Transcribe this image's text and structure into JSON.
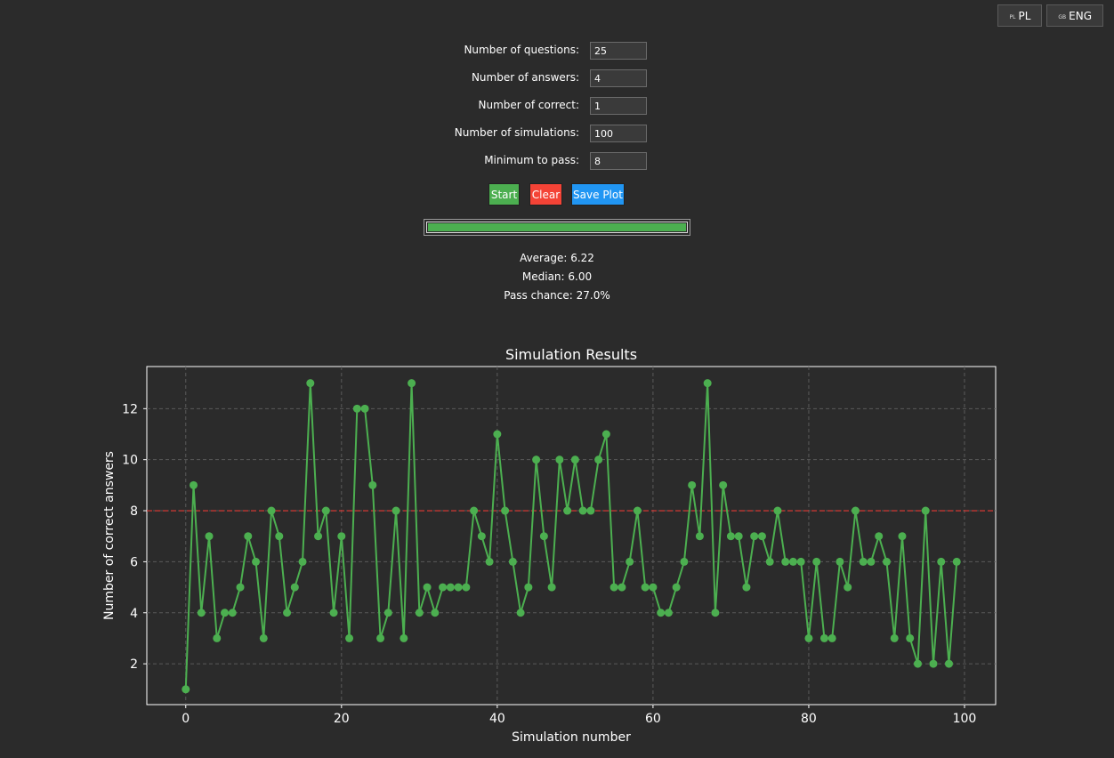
{
  "language": {
    "pl": {
      "flag": "PL",
      "label": "PL"
    },
    "eng": {
      "flag": "GB",
      "label": "ENG"
    }
  },
  "form": {
    "questions": {
      "label": "Number of questions:",
      "value": "25"
    },
    "answers": {
      "label": "Number of answers:",
      "value": "4"
    },
    "correct": {
      "label": "Number of correct:",
      "value": "1"
    },
    "simulations": {
      "label": "Number of simulations:",
      "value": "100"
    },
    "minimum": {
      "label": "Minimum to pass:",
      "value": "8"
    }
  },
  "buttons": {
    "start": "Start",
    "clear": "Clear",
    "save": "Save Plot"
  },
  "colors": {
    "start": "#4caf50",
    "clear": "#f44336",
    "save": "#2196f3",
    "series": "#4caf50",
    "threshold": "#e53935"
  },
  "progress": {
    "fraction": 1.0
  },
  "stats": {
    "average": "Average: 6.22",
    "median": "Median: 6.00",
    "pass_chance": "Pass chance: 27.0%"
  },
  "chart_data": {
    "type": "line",
    "title": "Simulation Results",
    "xlabel": "Simulation number",
    "ylabel": "Number of correct answers",
    "xlim": [
      -5,
      104
    ],
    "ylim": [
      0.4,
      13.65
    ],
    "xticks": [
      0,
      20,
      40,
      60,
      80,
      100
    ],
    "yticks": [
      2,
      4,
      6,
      8,
      10,
      12
    ],
    "grid": true,
    "threshold": 8,
    "x": [
      0,
      1,
      2,
      3,
      4,
      5,
      6,
      7,
      8,
      9,
      10,
      11,
      12,
      13,
      14,
      15,
      16,
      17,
      18,
      19,
      20,
      21,
      22,
      23,
      24,
      25,
      26,
      27,
      28,
      29,
      30,
      31,
      32,
      33,
      34,
      35,
      36,
      37,
      38,
      39,
      40,
      41,
      42,
      43,
      44,
      45,
      46,
      47,
      48,
      49,
      50,
      51,
      52,
      53,
      54,
      55,
      56,
      57,
      58,
      59,
      60,
      61,
      62,
      63,
      64,
      65,
      66,
      67,
      68,
      69,
      70,
      71,
      72,
      73,
      74,
      75,
      76,
      77,
      78,
      79,
      80,
      81,
      82,
      83,
      84,
      85,
      86,
      87,
      88,
      89,
      90,
      91,
      92,
      93,
      94,
      95,
      96,
      97,
      98,
      99
    ],
    "values": [
      1,
      9,
      4,
      7,
      3,
      4,
      4,
      5,
      7,
      6,
      3,
      8,
      7,
      4,
      5,
      6,
      13,
      7,
      8,
      4,
      7,
      3,
      12,
      12,
      9,
      3,
      4,
      8,
      3,
      13,
      4,
      5,
      4,
      5,
      5,
      5,
      5,
      8,
      7,
      6,
      11,
      8,
      6,
      4,
      5,
      10,
      7,
      5,
      10,
      8,
      10,
      8,
      8,
      10,
      11,
      5,
      5,
      6,
      8,
      5,
      5,
      4,
      4,
      5,
      6,
      9,
      7,
      13,
      4,
      9,
      7,
      7,
      5,
      7,
      7,
      6,
      8,
      6,
      6,
      6,
      3,
      6,
      3,
      3,
      6,
      5,
      8,
      6,
      6,
      7,
      6,
      3,
      7,
      3,
      2,
      8,
      2,
      6,
      2,
      6
    ]
  }
}
